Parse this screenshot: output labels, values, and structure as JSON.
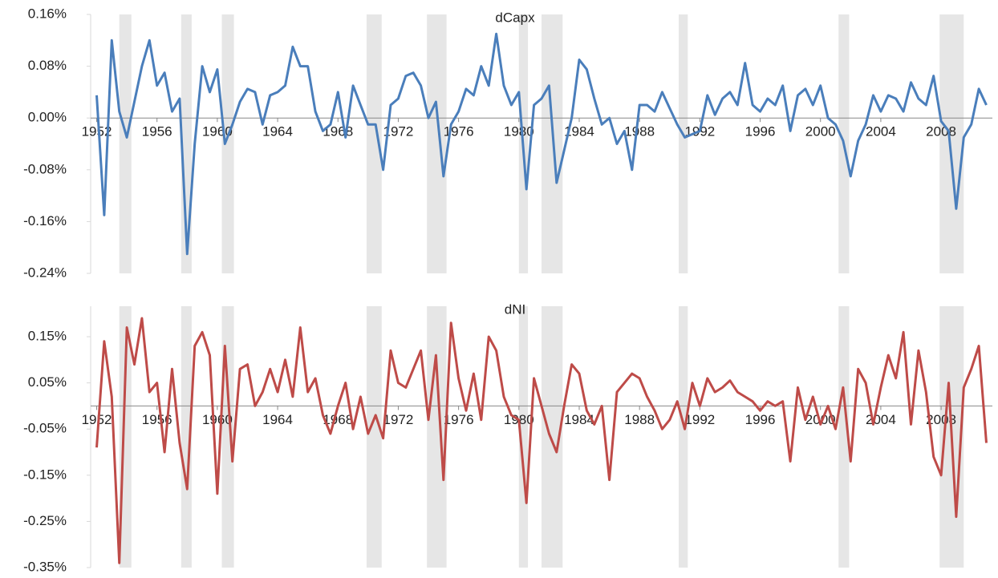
{
  "chart_data": [
    {
      "type": "line",
      "title": "dCapx",
      "x": [
        1952,
        1952.5,
        1953,
        1953.5,
        1954,
        1954.5,
        1955,
        1955.5,
        1956,
        1956.5,
        1957,
        1957.5,
        1958,
        1958.5,
        1959,
        1959.5,
        1960,
        1960.5,
        1961,
        1961.5,
        1962,
        1962.5,
        1963,
        1963.5,
        1964,
        1964.5,
        1965,
        1965.5,
        1966,
        1966.5,
        1967,
        1967.5,
        1968,
        1968.5,
        1969,
        1969.5,
        1970,
        1970.5,
        1971,
        1971.5,
        1972,
        1972.5,
        1973,
        1973.5,
        1974,
        1974.5,
        1975,
        1975.5,
        1976,
        1976.5,
        1977,
        1977.5,
        1978,
        1978.5,
        1979,
        1979.5,
        1980,
        1980.5,
        1981,
        1981.5,
        1982,
        1982.5,
        1983,
        1983.5,
        1984,
        1984.5,
        1985,
        1985.5,
        1986,
        1986.5,
        1987,
        1987.5,
        1988,
        1988.5,
        1989,
        1989.5,
        1990,
        1990.5,
        1991,
        1991.5,
        1992,
        1992.5,
        1993,
        1993.5,
        1994,
        1994.5,
        1995,
        1995.5,
        1996,
        1996.5,
        1997,
        1997.5,
        1998,
        1998.5,
        1999,
        1999.5,
        2000,
        2000.5,
        2001,
        2001.5,
        2002,
        2002.5,
        2003,
        2003.5,
        2004,
        2004.5,
        2005,
        2005.5,
        2006,
        2006.5,
        2007,
        2007.5,
        2008,
        2008.5,
        2009,
        2009.5,
        2010,
        2010.5,
        2011
      ],
      "series": [
        {
          "color": "#4a7ebb",
          "values": [
            0.035,
            -0.15,
            0.12,
            0.01,
            -0.03,
            0.025,
            0.08,
            0.12,
            0.05,
            0.07,
            0.01,
            0.03,
            -0.21,
            -0.04,
            0.08,
            0.04,
            0.075,
            -0.04,
            -0.01,
            0.025,
            0.045,
            0.04,
            -0.01,
            0.035,
            0.04,
            0.05,
            0.11,
            0.08,
            0.08,
            0.01,
            -0.02,
            -0.01,
            0.04,
            -0.03,
            0.05,
            0.02,
            -0.01,
            -0.01,
            -0.08,
            0.02,
            0.03,
            0.065,
            0.07,
            0.05,
            0.0,
            0.025,
            -0.09,
            -0.01,
            0.01,
            0.045,
            0.035,
            0.08,
            0.05,
            0.13,
            0.05,
            0.02,
            0.04,
            -0.11,
            0.02,
            0.03,
            0.05,
            -0.1,
            -0.05,
            0.0,
            0.09,
            0.075,
            0.03,
            -0.01,
            0.0,
            -0.04,
            -0.02,
            -0.08,
            0.02,
            0.02,
            0.01,
            0.04,
            0.015,
            -0.01,
            -0.03,
            -0.025,
            -0.02,
            0.035,
            0.005,
            0.03,
            0.04,
            0.02,
            0.085,
            0.02,
            0.01,
            0.03,
            0.02,
            0.05,
            -0.02,
            0.035,
            0.045,
            0.02,
            0.05,
            0.0,
            -0.01,
            -0.035,
            -0.09,
            -0.035,
            -0.01,
            0.035,
            0.01,
            0.035,
            0.03,
            0.01,
            0.055,
            0.03,
            0.02,
            0.065,
            -0.005,
            -0.02,
            -0.14,
            -0.03,
            -0.01,
            0.045,
            0.02
          ]
        }
      ],
      "xlim": [
        1951.6,
        2011.4
      ],
      "xticks": [
        1952,
        1956,
        1960,
        1964,
        1968,
        1972,
        1976,
        1980,
        1984,
        1988,
        1992,
        1996,
        2000,
        2004,
        2008
      ],
      "ylim": [
        -0.24,
        0.16
      ],
      "yticks": [
        {
          "value": -0.24,
          "label": "-0.24%"
        },
        {
          "value": -0.16,
          "label": "-0.16%"
        },
        {
          "value": -0.08,
          "label": "-0.08%"
        },
        {
          "value": 0,
          "label": "0.00%"
        },
        {
          "value": 0.08,
          "label": "0.08%"
        },
        {
          "value": 0.16,
          "label": "0.16%"
        }
      ],
      "shaded_bands": [
        [
          1953.5,
          1954.3
        ],
        [
          1957.6,
          1958.3
        ],
        [
          1960.3,
          1961.1
        ],
        [
          1969.9,
          1970.9
        ],
        [
          1973.9,
          1975.2
        ],
        [
          1980.0,
          1980.6
        ],
        [
          1981.5,
          1982.9
        ],
        [
          1990.6,
          1991.2
        ],
        [
          2001.2,
          2001.9
        ],
        [
          2007.9,
          2009.5
        ]
      ],
      "band_color": "#e6e6e6"
    },
    {
      "type": "line",
      "title": "dNI",
      "x": [
        1952,
        1952.5,
        1953,
        1953.5,
        1954,
        1954.5,
        1955,
        1955.5,
        1956,
        1956.5,
        1957,
        1957.5,
        1958,
        1958.5,
        1959,
        1959.5,
        1960,
        1960.5,
        1961,
        1961.5,
        1962,
        1962.5,
        1963,
        1963.5,
        1964,
        1964.5,
        1965,
        1965.5,
        1966,
        1966.5,
        1967,
        1967.5,
        1968,
        1968.5,
        1969,
        1969.5,
        1970,
        1970.5,
        1971,
        1971.5,
        1972,
        1972.5,
        1973,
        1973.5,
        1974,
        1974.5,
        1975,
        1975.5,
        1976,
        1976.5,
        1977,
        1977.5,
        1978,
        1978.5,
        1979,
        1979.5,
        1980,
        1980.5,
        1981,
        1981.5,
        1982,
        1982.5,
        1983,
        1983.5,
        1984,
        1984.5,
        1985,
        1985.5,
        1986,
        1986.5,
        1987,
        1987.5,
        1988,
        1988.5,
        1989,
        1989.5,
        1990,
        1990.5,
        1991,
        1991.5,
        1992,
        1992.5,
        1993,
        1993.5,
        1994,
        1994.5,
        1995,
        1995.5,
        1996,
        1996.5,
        1997,
        1997.5,
        1998,
        1998.5,
        1999,
        1999.5,
        2000,
        2000.5,
        2001,
        2001.5,
        2002,
        2002.5,
        2003,
        2003.5,
        2004,
        2004.5,
        2005,
        2005.5,
        2006,
        2006.5,
        2007,
        2007.5,
        2008,
        2008.5,
        2009,
        2009.5,
        2010,
        2010.5,
        2011
      ],
      "series": [
        {
          "color": "#be4b48",
          "values": [
            -0.09,
            0.14,
            0.02,
            -0.34,
            0.17,
            0.09,
            0.19,
            0.03,
            0.05,
            -0.1,
            0.08,
            -0.08,
            -0.18,
            0.13,
            0.16,
            0.11,
            -0.19,
            0.13,
            -0.12,
            0.08,
            0.09,
            0.0,
            0.03,
            0.08,
            0.03,
            0.1,
            0.02,
            0.17,
            0.03,
            0.06,
            -0.02,
            -0.06,
            0.0,
            0.05,
            -0.05,
            0.02,
            -0.06,
            -0.02,
            -0.07,
            0.12,
            0.05,
            0.04,
            0.08,
            0.12,
            -0.03,
            0.11,
            -0.16,
            0.18,
            0.06,
            -0.01,
            0.07,
            -0.03,
            0.15,
            0.12,
            0.02,
            -0.02,
            -0.03,
            -0.21,
            0.06,
            0.0,
            -0.06,
            -0.1,
            0.0,
            0.09,
            0.07,
            -0.01,
            -0.04,
            0.0,
            -0.16,
            0.03,
            0.05,
            0.07,
            0.06,
            0.02,
            -0.01,
            -0.05,
            -0.03,
            0.01,
            -0.05,
            0.05,
            0.0,
            0.06,
            0.03,
            0.04,
            0.055,
            0.03,
            0.02,
            0.01,
            -0.01,
            0.01,
            0.0,
            0.01,
            -0.12,
            0.04,
            -0.03,
            0.02,
            -0.04,
            0.0,
            -0.05,
            0.04,
            -0.12,
            0.08,
            0.05,
            -0.04,
            0.04,
            0.11,
            0.06,
            0.16,
            -0.04,
            0.12,
            0.03,
            -0.11,
            -0.15,
            0.05,
            -0.24,
            0.04,
            0.08,
            0.13,
            -0.08
          ]
        }
      ],
      "xlim": [
        1951.6,
        2011.4
      ],
      "xticks": [
        1952,
        1956,
        1960,
        1964,
        1968,
        1972,
        1976,
        1980,
        1984,
        1988,
        1992,
        1996,
        2000,
        2004,
        2008
      ],
      "ylim": [
        -0.35,
        0.216
      ],
      "yticks": [
        {
          "value": -0.35,
          "label": "-0.35%"
        },
        {
          "value": -0.25,
          "label": "-0.25%"
        },
        {
          "value": -0.15,
          "label": "-0.15%"
        },
        {
          "value": -0.05,
          "label": "-0.05%"
        },
        {
          "value": 0.05,
          "label": "0.05%"
        },
        {
          "value": 0.15,
          "label": "0.15%"
        }
      ],
      "shaded_bands": [
        [
          1953.5,
          1954.3
        ],
        [
          1957.6,
          1958.3
        ],
        [
          1960.3,
          1961.1
        ],
        [
          1969.9,
          1970.9
        ],
        [
          1973.9,
          1975.2
        ],
        [
          1980.0,
          1980.6
        ],
        [
          1981.5,
          1982.9
        ],
        [
          1990.6,
          1991.2
        ],
        [
          2001.2,
          2001.9
        ],
        [
          2007.9,
          2009.5
        ]
      ],
      "band_color": "#e6e6e6"
    }
  ]
}
